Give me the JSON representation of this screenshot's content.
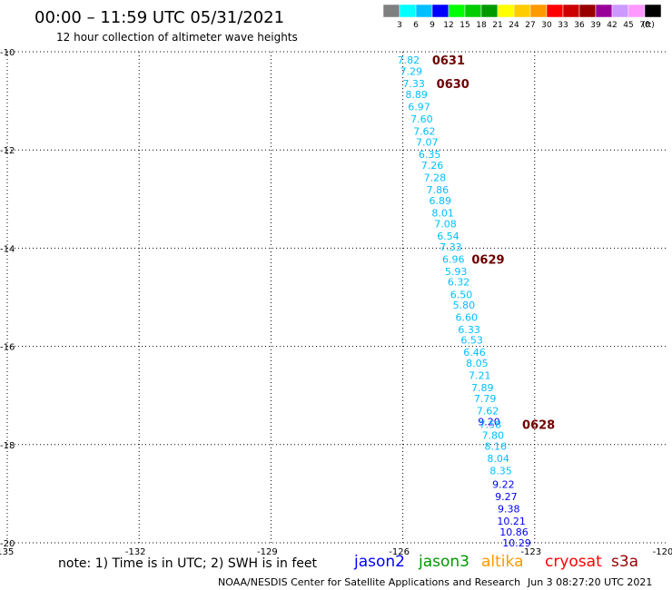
{
  "header": {
    "title": "00:00 – 11:59 UTC 05/31/2021",
    "subtitle": "12 hour collection of altimeter wave heights"
  },
  "legend": {
    "colors": [
      "#7f7f7f",
      "#00ffff",
      "#00bfff",
      "#0000ff",
      "#00ff00",
      "#00cc00",
      "#009900",
      "#ffff00",
      "#ffcc00",
      "#ff9900",
      "#ff0000",
      "#cc0000",
      "#990000",
      "#990099",
      "#cc99ff",
      "#ff99ff",
      "#000000"
    ],
    "labels": [
      "3",
      "6",
      "9",
      "12",
      "15",
      "18",
      "21",
      "24",
      "27",
      "30",
      "33",
      "36",
      "39",
      "42",
      "45",
      "70"
    ],
    "unit": "(ft)"
  },
  "chart_data": {
    "type": "scatter",
    "title": "12 hour collection of altimeter wave heights",
    "xlim": [
      -135,
      -120
    ],
    "ylim": [
      -20,
      -10
    ],
    "x_tick_labels": [
      "-135",
      "-132",
      "-129",
      "-126",
      "-123",
      "-120"
    ],
    "y_tick_labels": [
      "-10",
      "-12",
      "-14",
      "-16",
      "-18",
      "-20"
    ],
    "grid": true,
    "unit": "ft",
    "swh_points": [
      {
        "x": -125.87,
        "y": -10.17,
        "value": "7.82",
        "color": "#00bfff"
      },
      {
        "x": -125.81,
        "y": -10.4,
        "value": "7.29",
        "color": "#00bfff"
      },
      {
        "x": -125.75,
        "y": -10.65,
        "value": "7.33",
        "color": "#00bfff"
      },
      {
        "x": -125.69,
        "y": -10.87,
        "value": "8.89",
        "color": "#00bfff"
      },
      {
        "x": -125.63,
        "y": -11.12,
        "value": "6.97",
        "color": "#00bfff"
      },
      {
        "x": -125.57,
        "y": -11.37,
        "value": "7.60",
        "color": "#00bfff"
      },
      {
        "x": -125.51,
        "y": -11.62,
        "value": "7.62",
        "color": "#00bfff"
      },
      {
        "x": -125.45,
        "y": -11.84,
        "value": "7.07",
        "color": "#00bfff"
      },
      {
        "x": -125.39,
        "y": -12.09,
        "value": "6.35",
        "color": "#00bfff"
      },
      {
        "x": -125.33,
        "y": -12.31,
        "value": "7.26",
        "color": "#00bfff"
      },
      {
        "x": -125.27,
        "y": -12.56,
        "value": "7.28",
        "color": "#00bfff"
      },
      {
        "x": -125.21,
        "y": -12.81,
        "value": "7.86",
        "color": "#00bfff"
      },
      {
        "x": -125.15,
        "y": -13.03,
        "value": "6.89",
        "color": "#00bfff"
      },
      {
        "x": -125.09,
        "y": -13.28,
        "value": "8.01",
        "color": "#00bfff"
      },
      {
        "x": -125.03,
        "y": -13.5,
        "value": "7.08",
        "color": "#00bfff"
      },
      {
        "x": -124.97,
        "y": -13.75,
        "value": "6.54",
        "color": "#00bfff"
      },
      {
        "x": -124.91,
        "y": -13.97,
        "value": "7.33",
        "color": "#00bfff"
      },
      {
        "x": -124.85,
        "y": -14.22,
        "value": "6.96",
        "color": "#00bfff"
      },
      {
        "x": -124.79,
        "y": -14.47,
        "value": "5.93",
        "color": "#00bfff"
      },
      {
        "x": -124.73,
        "y": -14.69,
        "value": "6.32",
        "color": "#00bfff"
      },
      {
        "x": -124.67,
        "y": -14.94,
        "value": "6.50",
        "color": "#00bfff"
      },
      {
        "x": -124.61,
        "y": -15.16,
        "value": "5.80",
        "color": "#00bfff"
      },
      {
        "x": -124.55,
        "y": -15.41,
        "value": "6.60",
        "color": "#00bfff"
      },
      {
        "x": -124.49,
        "y": -15.66,
        "value": "6.33",
        "color": "#00bfff"
      },
      {
        "x": -124.43,
        "y": -15.87,
        "value": "6.53",
        "color": "#00bfff"
      },
      {
        "x": -124.37,
        "y": -16.12,
        "value": "6.46",
        "color": "#00bfff"
      },
      {
        "x": -124.31,
        "y": -16.34,
        "value": "8.05",
        "color": "#00bfff"
      },
      {
        "x": -124.25,
        "y": -16.59,
        "value": "7.21",
        "color": "#00bfff"
      },
      {
        "x": -124.19,
        "y": -16.84,
        "value": "7.89",
        "color": "#00bfff"
      },
      {
        "x": -124.13,
        "y": -17.06,
        "value": "7.79",
        "color": "#00bfff"
      },
      {
        "x": -124.07,
        "y": -17.31,
        "value": "7.62",
        "color": "#00bfff"
      },
      {
        "x": -124.04,
        "y": -17.53,
        "value": "9.20",
        "color": "#0000ff"
      },
      {
        "x": -124.01,
        "y": -17.59,
        "value": "7.58",
        "color": "#00bfff"
      },
      {
        "x": -123.95,
        "y": -17.81,
        "value": "7.80",
        "color": "#00bfff"
      },
      {
        "x": -123.89,
        "y": -18.03,
        "value": "8.16",
        "color": "#00bfff"
      },
      {
        "x": -123.83,
        "y": -18.28,
        "value": "8.04",
        "color": "#00bfff"
      },
      {
        "x": -123.77,
        "y": -18.53,
        "value": "8.35",
        "color": "#00bfff"
      },
      {
        "x": -123.71,
        "y": -18.81,
        "value": "9.22",
        "color": "#0000ff"
      },
      {
        "x": -123.65,
        "y": -19.06,
        "value": "9.27",
        "color": "#0000ff"
      },
      {
        "x": -123.59,
        "y": -19.31,
        "value": "9.38",
        "color": "#0000ff"
      },
      {
        "x": -123.53,
        "y": -19.56,
        "value": "10.21",
        "color": "#0000ff"
      },
      {
        "x": -123.47,
        "y": -19.78,
        "value": "10.86",
        "color": "#0000ff"
      },
      {
        "x": -123.41,
        "y": -20.0,
        "value": "10.29",
        "color": "#0000ff"
      }
    ],
    "time_labels": [
      {
        "x": -124.96,
        "y": -10.17,
        "label": "0631"
      },
      {
        "x": -124.86,
        "y": -10.65,
        "label": "0630"
      },
      {
        "x": -124.06,
        "y": -14.22,
        "label": "0629"
      },
      {
        "x": -122.91,
        "y": -17.59,
        "label": "0628"
      }
    ]
  },
  "footer": {
    "note": "note: 1) Time is in UTC; 2) SWH is in feet",
    "satellites": [
      {
        "name": "jason2",
        "color": "#0000ff"
      },
      {
        "name": "jason3",
        "color": "#009900"
      },
      {
        "name": "altika",
        "color": "#ff9900"
      },
      {
        "name": "cryosat",
        "color": "#ff0000"
      },
      {
        "name": "s3a",
        "color": "#990000"
      }
    ],
    "credit": "NOAA/NESDIS Center for Satellite Applications and Research",
    "timestamp": "Jun  3 08:27:20 UTC 2021"
  }
}
